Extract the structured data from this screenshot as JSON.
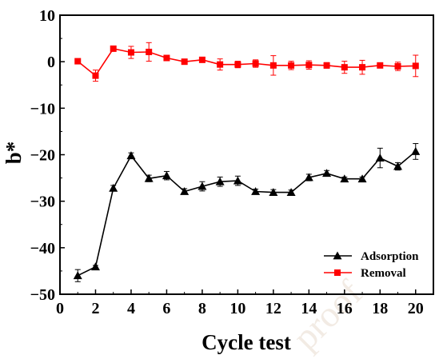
{
  "watermark_text": "proof",
  "chart_data": {
    "type": "line",
    "xlabel": "Cycle test",
    "ylabel": "b*",
    "xlim": [
      0,
      21
    ],
    "ylim": [
      -50,
      10
    ],
    "xticks": [
      0,
      2,
      4,
      6,
      8,
      10,
      12,
      14,
      16,
      18,
      20
    ],
    "yticks": [
      10,
      0,
      -10,
      -20,
      -30,
      -40,
      -50
    ],
    "x": [
      1,
      2,
      3,
      4,
      5,
      6,
      7,
      8,
      9,
      10,
      11,
      12,
      13,
      14,
      15,
      16,
      17,
      18,
      19,
      20
    ],
    "legend_position": "bottom-right",
    "series": [
      {
        "name": "Adsorption",
        "color": "#000000",
        "marker": "triangle",
        "values": [
          -46.0,
          -44.1,
          -27.2,
          -20.2,
          -25.1,
          -24.5,
          -27.9,
          -26.8,
          -25.8,
          -25.6,
          -27.9,
          -28.1,
          -28.1,
          -24.9,
          -24.0,
          -25.2,
          -25.2,
          -20.7,
          -22.5,
          -19.3
        ],
        "errors": [
          1.3,
          0.3,
          0.6,
          0.6,
          0.7,
          0.9,
          0.6,
          1.0,
          1.0,
          1.0,
          0.5,
          0.6,
          0.5,
          0.7,
          0.6,
          0.4,
          0.4,
          2.1,
          0.8,
          1.7
        ]
      },
      {
        "name": "Removal",
        "color": "#ff0000",
        "marker": "square",
        "values": [
          0.1,
          -3.0,
          2.8,
          2.0,
          2.1,
          0.8,
          0.0,
          0.4,
          -0.6,
          -0.6,
          -0.4,
          -0.8,
          -0.8,
          -0.7,
          -0.8,
          -1.2,
          -1.2,
          -0.8,
          -1.0,
          -0.9
        ],
        "errors": [
          0.3,
          1.2,
          0.4,
          1.3,
          2.0,
          0.3,
          0.3,
          0.3,
          1.2,
          0.7,
          0.8,
          2.1,
          0.9,
          0.9,
          0.6,
          1.3,
          1.5,
          0.4,
          0.9,
          2.3
        ]
      }
    ]
  }
}
